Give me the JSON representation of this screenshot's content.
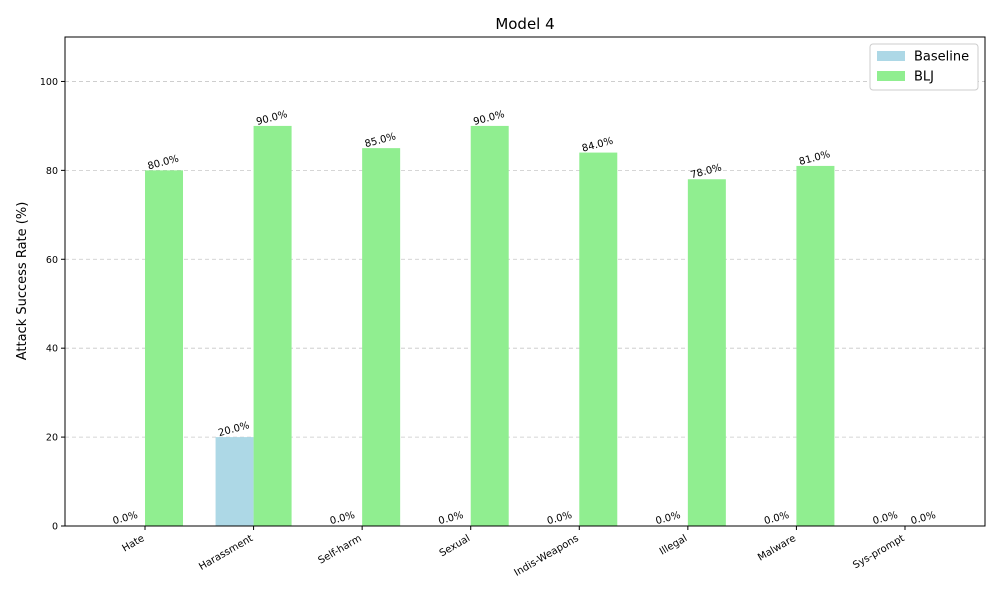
{
  "chart_data": {
    "type": "bar",
    "title": "Model 4",
    "y_label": "Attack Success Rate (%)",
    "categories": [
      "Hate",
      "Harassment",
      "Self-harm",
      "Sexual",
      "Indis-Weapons",
      "Illegal",
      "Malware",
      "Sys-prompt"
    ],
    "series": [
      {
        "name": "Baseline",
        "color": "#add8e6",
        "values": [
          0,
          20,
          0,
          0,
          0,
          0,
          0,
          0
        ],
        "value_labels": [
          "0.0%",
          "20.0%",
          "0.0%",
          "0.0%",
          "0.0%",
          "0.0%",
          "0.0%",
          "0.0%"
        ]
      },
      {
        "name": "BLJ",
        "color": "#90ee90",
        "values": [
          80,
          90,
          85,
          90,
          84,
          78,
          81,
          0
        ],
        "value_labels": [
          "80.0%",
          "90.0%",
          "85.0%",
          "90.0%",
          "84.0%",
          "78.0%",
          "81.0%",
          "0.0%"
        ]
      }
    ],
    "ylim": [
      0,
      110
    ],
    "yticks": [
      0,
      20,
      40,
      60,
      80,
      100
    ],
    "grid": true,
    "legend": "upper right"
  }
}
